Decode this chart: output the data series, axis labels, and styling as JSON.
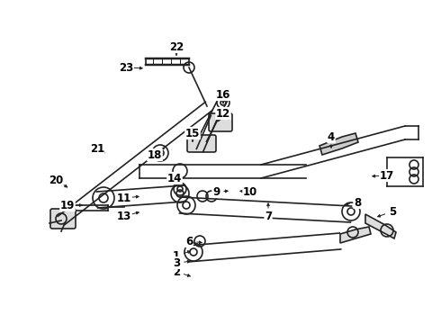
{
  "bg_color": "#ffffff",
  "line_color": "#222222",
  "lw": 1.2,
  "fig_w": 4.9,
  "fig_h": 3.6,
  "dpi": 100,
  "labels": {
    "1": [
      196,
      284,
      215,
      278
    ],
    "2": [
      196,
      302,
      215,
      308
    ],
    "3": [
      196,
      292,
      215,
      290
    ],
    "4": [
      368,
      152,
      368,
      168
    ],
    "5": [
      436,
      235,
      416,
      242
    ],
    "6": [
      210,
      268,
      228,
      270
    ],
    "7": [
      298,
      240,
      298,
      222
    ],
    "8": [
      397,
      225,
      380,
      228
    ],
    "9": [
      240,
      213,
      257,
      212
    ],
    "10": [
      278,
      213,
      263,
      212
    ],
    "11": [
      138,
      220,
      158,
      218
    ],
    "12": [
      248,
      126,
      240,
      138
    ],
    "13": [
      138,
      240,
      158,
      235
    ],
    "14": [
      194,
      198,
      194,
      208
    ],
    "15": [
      214,
      148,
      214,
      158
    ],
    "16": [
      248,
      105,
      248,
      116
    ],
    "17": [
      430,
      195,
      410,
      196
    ],
    "18": [
      172,
      172,
      184,
      170
    ],
    "19": [
      75,
      228,
      95,
      228
    ],
    "20": [
      62,
      200,
      78,
      210
    ],
    "21": [
      108,
      165,
      120,
      172
    ],
    "22": [
      196,
      52,
      196,
      62
    ],
    "23": [
      140,
      75,
      162,
      76
    ]
  },
  "fs": 8.5
}
